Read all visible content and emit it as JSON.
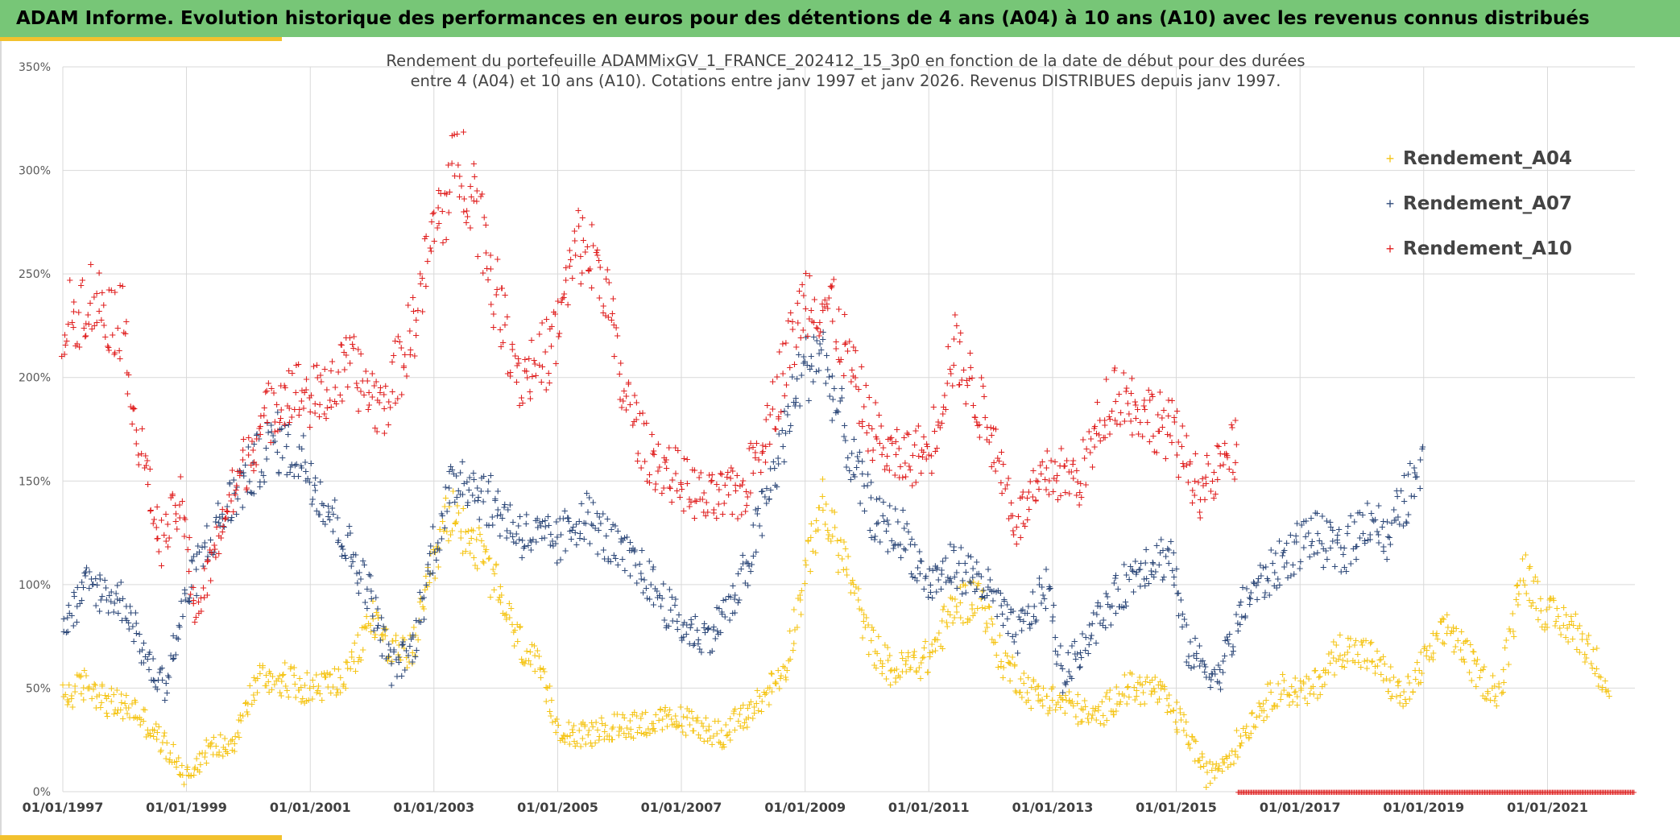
{
  "banner": {
    "title": "ADAM Informe. Evolution historique des performances en euros pour des détentions de 4 ans (A04) à 10 ans (A10) avec les revenus connus distribués"
  },
  "colors": {
    "banner": "#77c677",
    "accent": "#f2c12e",
    "A04": "#f5c518",
    "A07": "#2f4a7a",
    "A10": "#e02020",
    "grid": "#d9d9d9"
  },
  "chart_data": {
    "type": "scatter",
    "title_lines": [
      "Rendement du portefeuille ADAMMixGV_1_FRANCE_202412_15_3p0  en fonction de la date de début pour des durées",
      "entre 4 (A04) et 10 ans (A10). Cotations entre janv 1997 et janv 2026. Revenus DISTRIBUES depuis janv 1997."
    ],
    "x_axis": {
      "start": "1997-01-01",
      "end": "2022-06-01",
      "tick_labels": [
        "01/01/1997",
        "01/01/1999",
        "01/01/2001",
        "01/01/2003",
        "01/01/2005",
        "01/01/2007",
        "01/01/2009",
        "01/01/2011",
        "01/01/2013",
        "01/01/2015",
        "01/01/2017",
        "01/01/2019",
        "01/01/2021"
      ]
    },
    "y_axis": {
      "min": 0,
      "max": 350,
      "step": 50,
      "tick_labels": [
        "0%",
        "50%",
        "100%",
        "150%",
        "200%",
        "250%",
        "300%",
        "350%"
      ]
    },
    "grid": true,
    "legend_position": "top-right",
    "series": [
      {
        "name": "Rendement_A04",
        "key": "A04",
        "start": "1997-01-01",
        "end": "2022-01-01",
        "anchors": [
          [
            "1997-01-01",
            45
          ],
          [
            "1997-06-01",
            53
          ],
          [
            "1997-10-01",
            43
          ],
          [
            "1998-03-01",
            40
          ],
          [
            "1998-09-01",
            22
          ],
          [
            "1999-01-01",
            8
          ],
          [
            "1999-05-01",
            20
          ],
          [
            "1999-10-01",
            25
          ],
          [
            "2000-03-01",
            55
          ],
          [
            "2000-08-01",
            55
          ],
          [
            "2001-01-01",
            50
          ],
          [
            "2001-08-01",
            55
          ],
          [
            "2002-01-01",
            85
          ],
          [
            "2002-06-01",
            65
          ],
          [
            "2002-09-01",
            70
          ],
          [
            "2003-01-01",
            110
          ],
          [
            "2003-04-01",
            135
          ],
          [
            "2003-08-01",
            125
          ],
          [
            "2004-01-01",
            100
          ],
          [
            "2004-05-01",
            75
          ],
          [
            "2004-09-01",
            60
          ],
          [
            "2005-01-01",
            32
          ],
          [
            "2005-06-01",
            27
          ],
          [
            "2006-03-01",
            33
          ],
          [
            "2007-01-01",
            35
          ],
          [
            "2007-09-01",
            28
          ],
          [
            "2008-03-01",
            40
          ],
          [
            "2008-09-01",
            60
          ],
          [
            "2009-01-01",
            105
          ],
          [
            "2009-04-01",
            140
          ],
          [
            "2009-09-01",
            110
          ],
          [
            "2010-01-01",
            75
          ],
          [
            "2010-06-01",
            58
          ],
          [
            "2011-01-01",
            65
          ],
          [
            "2011-06-01",
            90
          ],
          [
            "2011-11-01",
            95
          ],
          [
            "2012-03-01",
            65
          ],
          [
            "2012-09-01",
            48
          ],
          [
            "2013-05-01",
            42
          ],
          [
            "2013-09-01",
            35
          ],
          [
            "2014-03-01",
            50
          ],
          [
            "2014-09-01",
            50
          ],
          [
            "2015-03-01",
            30
          ],
          [
            "2015-07-01",
            8
          ],
          [
            "2015-12-01",
            20
          ],
          [
            "2016-05-01",
            40
          ],
          [
            "2016-09-01",
            50
          ],
          [
            "2017-03-01",
            48
          ],
          [
            "2017-09-01",
            70
          ],
          [
            "2018-03-01",
            65
          ],
          [
            "2018-09-01",
            45
          ],
          [
            "2019-03-01",
            70
          ],
          [
            "2019-06-01",
            80
          ],
          [
            "2019-12-01",
            55
          ],
          [
            "2020-04-01",
            48
          ],
          [
            "2020-08-01",
            110
          ],
          [
            "2021-01-01",
            85
          ],
          [
            "2021-06-01",
            80
          ],
          [
            "2021-10-01",
            65
          ],
          [
            "2022-01-01",
            50
          ]
        ]
      },
      {
        "name": "Rendement_A07",
        "key": "A07",
        "start": "1997-01-01",
        "end": "2019-01-01",
        "anchors": [
          [
            "1997-01-01",
            80
          ],
          [
            "1997-06-01",
            100
          ],
          [
            "1998-01-01",
            92
          ],
          [
            "1998-06-01",
            60
          ],
          [
            "1998-09-01",
            52
          ],
          [
            "1999-01-01",
            95
          ],
          [
            "1999-06-01",
            125
          ],
          [
            "1999-12-01",
            150
          ],
          [
            "2000-06-01",
            170
          ],
          [
            "2000-12-01",
            160
          ],
          [
            "2001-06-01",
            130
          ],
          [
            "2001-12-01",
            100
          ],
          [
            "2002-05-01",
            60
          ],
          [
            "2002-09-01",
            70
          ],
          [
            "2003-01-01",
            120
          ],
          [
            "2003-06-01",
            155
          ],
          [
            "2003-12-01",
            140
          ],
          [
            "2004-06-01",
            125
          ],
          [
            "2005-01-01",
            120
          ],
          [
            "2005-06-01",
            135
          ],
          [
            "2006-01-01",
            115
          ],
          [
            "2006-06-01",
            105
          ],
          [
            "2007-01-01",
            80
          ],
          [
            "2007-06-01",
            75
          ],
          [
            "2007-12-01",
            95
          ],
          [
            "2008-06-01",
            145
          ],
          [
            "2008-12-01",
            200
          ],
          [
            "2009-04-01",
            215
          ],
          [
            "2009-10-01",
            160
          ],
          [
            "2010-03-01",
            130
          ],
          [
            "2010-08-01",
            125
          ],
          [
            "2011-01-01",
            100
          ],
          [
            "2011-06-01",
            110
          ],
          [
            "2011-12-01",
            100
          ],
          [
            "2012-06-01",
            75
          ],
          [
            "2012-12-01",
            100
          ],
          [
            "2013-03-01",
            55
          ],
          [
            "2013-09-01",
            80
          ],
          [
            "2014-06-01",
            110
          ],
          [
            "2014-12-01",
            115
          ],
          [
            "2015-03-01",
            70
          ],
          [
            "2015-09-01",
            55
          ],
          [
            "2016-03-01",
            95
          ],
          [
            "2016-09-01",
            110
          ],
          [
            "2017-03-01",
            125
          ],
          [
            "2017-09-01",
            115
          ],
          [
            "2018-03-01",
            135
          ],
          [
            "2018-06-01",
            120
          ],
          [
            "2018-09-01",
            140
          ],
          [
            "2019-01-01",
            155
          ]
        ]
      },
      {
        "name": "Rendement_A10",
        "key": "A10",
        "start": "1997-01-01",
        "end": "2016-01-01",
        "anchors": [
          [
            "1997-01-01",
            225
          ],
          [
            "1997-06-01",
            240
          ],
          [
            "1998-01-01",
            225
          ],
          [
            "1998-03-01",
            180
          ],
          [
            "1998-08-01",
            120
          ],
          [
            "1998-12-01",
            140
          ],
          [
            "1999-03-01",
            85
          ],
          [
            "1999-08-01",
            130
          ],
          [
            "2000-02-01",
            170
          ],
          [
            "2000-08-01",
            195
          ],
          [
            "2001-02-01",
            190
          ],
          [
            "2001-09-01",
            205
          ],
          [
            "2002-03-01",
            185
          ],
          [
            "2002-09-01",
            225
          ],
          [
            "2003-01-01",
            270
          ],
          [
            "2003-06-01",
            305
          ],
          [
            "2003-09-01",
            290
          ],
          [
            "2004-01-01",
            240
          ],
          [
            "2004-06-01",
            200
          ],
          [
            "2004-12-01",
            215
          ],
          [
            "2005-05-01",
            265
          ],
          [
            "2005-10-01",
            250
          ],
          [
            "2006-01-01",
            200
          ],
          [
            "2006-06-01",
            165
          ],
          [
            "2007-01-01",
            150
          ],
          [
            "2007-06-01",
            140
          ],
          [
            "2008-01-01",
            145
          ],
          [
            "2008-06-01",
            180
          ],
          [
            "2009-01-01",
            240
          ],
          [
            "2009-06-01",
            235
          ],
          [
            "2010-01-01",
            180
          ],
          [
            "2010-06-01",
            160
          ],
          [
            "2011-01-01",
            165
          ],
          [
            "2011-06-01",
            215
          ],
          [
            "2012-01-01",
            175
          ],
          [
            "2012-06-01",
            130
          ],
          [
            "2013-01-01",
            155
          ],
          [
            "2013-06-01",
            150
          ],
          [
            "2014-01-01",
            195
          ],
          [
            "2014-06-01",
            185
          ],
          [
            "2014-12-01",
            175
          ],
          [
            "2015-06-01",
            145
          ],
          [
            "2015-12-01",
            165
          ]
        ]
      }
    ]
  }
}
